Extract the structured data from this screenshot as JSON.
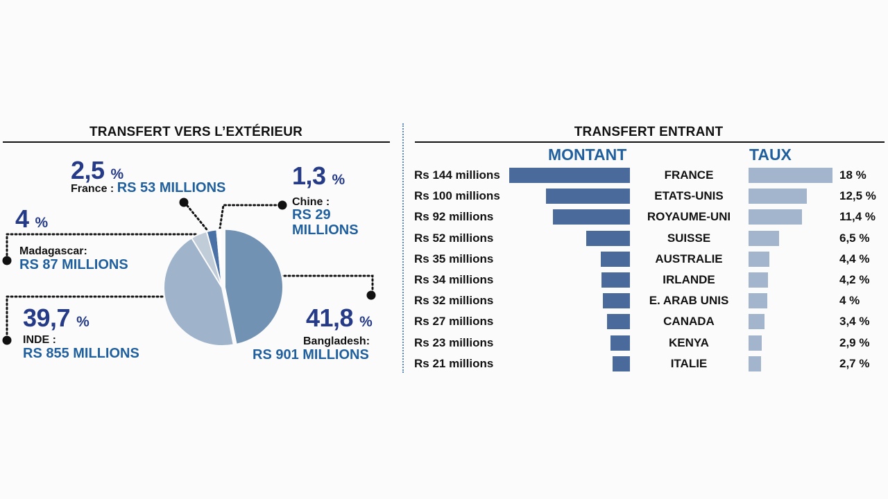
{
  "colors": {
    "bar_montant": "#4a6a9b",
    "bar_taux": "#a2b5cd",
    "pie_bangladesh": "#7292b4",
    "pie_inde": "#9fb3cb",
    "pie_madagascar": "#c1ccd9",
    "pie_france": "#4a72a6",
    "pie_chine": "#ffffff",
    "pct_text": "#263b87",
    "amount_text": "#1f5f9e"
  },
  "chart_data": [
    {
      "type": "pie",
      "title": "TRANSFERT VERS L’EXTÉRIEUR",
      "slices": [
        {
          "id": "bangladesh",
          "country": "Bangladesh:",
          "pct_value": 41.8,
          "pct_label": "41,8",
          "pct_sign": "%",
          "amount": "RS 901 MILLIONS"
        },
        {
          "id": "inde",
          "country": "INDE :",
          "pct_value": 39.7,
          "pct_label": "39,7",
          "pct_sign": "%",
          "amount": "RS 855 MILLIONS"
        },
        {
          "id": "madagascar",
          "country": "Madagascar:",
          "pct_value": 4,
          "pct_label": "4",
          "pct_sign": "%",
          "amount": "RS 87 MILLIONS"
        },
        {
          "id": "france",
          "country": "France :",
          "pct_value": 2.5,
          "pct_label": "2,5",
          "pct_sign": "%",
          "amount": "RS 53 MILLIONS"
        },
        {
          "id": "chine",
          "country": "Chine :",
          "pct_value": 1.3,
          "pct_label": "1,3",
          "pct_sign": "%",
          "amount_line1": "RS 29",
          "amount_line2": "MILLIONS"
        }
      ]
    },
    {
      "type": "bar",
      "title": "TRANSFERT ENTRANT",
      "montant_header": "MONTANT",
      "taux_header": "TAUX",
      "rows": [
        {
          "country": "FRANCE",
          "amount_value": 144,
          "amount_label": "Rs 144 millions",
          "rate_value": 18,
          "rate_label": "18 %"
        },
        {
          "country": "ETATS-UNIS",
          "amount_value": 100,
          "amount_label": "Rs 100 millions",
          "rate_value": 12.5,
          "rate_label": "12,5 %"
        },
        {
          "country": "ROYAUME-UNI",
          "amount_value": 92,
          "amount_label": "Rs 92 millions",
          "rate_value": 11.4,
          "rate_label": "11,4 %"
        },
        {
          "country": "SUISSE",
          "amount_value": 52,
          "amount_label": "Rs 52 millions",
          "rate_value": 6.5,
          "rate_label": "6,5 %"
        },
        {
          "country": "AUSTRALIE",
          "amount_value": 35,
          "amount_label": "Rs 35 millions",
          "rate_value": 4.4,
          "rate_label": "4,4 %"
        },
        {
          "country": "IRLANDE",
          "amount_value": 34,
          "amount_label": "Rs 34 millions",
          "rate_value": 4.2,
          "rate_label": "4,2 %"
        },
        {
          "country": "E. ARAB UNIS",
          "amount_value": 32,
          "amount_label": "Rs 32 millions",
          "rate_value": 4,
          "rate_label": "4 %"
        },
        {
          "country": "CANADA",
          "amount_value": 27,
          "amount_label": "Rs 27 millions",
          "rate_value": 3.4,
          "rate_label": "3,4 %"
        },
        {
          "country": "KENYA",
          "amount_value": 23,
          "amount_label": "Rs 23 millions",
          "rate_value": 2.9,
          "rate_label": "2,9 %"
        },
        {
          "country": "ITALIE",
          "amount_value": 21,
          "amount_label": "Rs 21 millions",
          "rate_value": 2.7,
          "rate_label": "2,7 %"
        }
      ]
    }
  ]
}
